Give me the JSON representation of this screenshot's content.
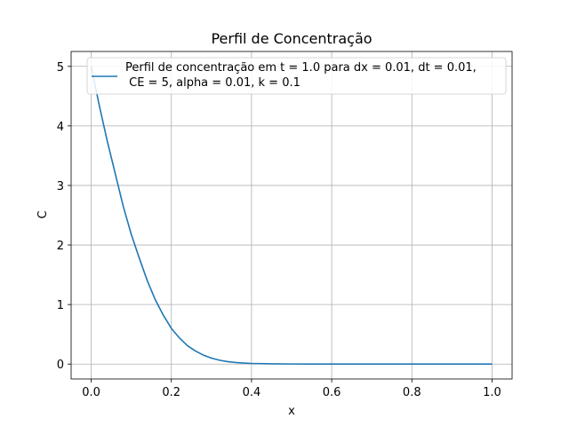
{
  "chart_data": {
    "type": "line",
    "title": "Perfil de Concentração",
    "xlabel": "x",
    "ylabel": "C",
    "xlim": [
      -0.05,
      1.05
    ],
    "ylim": [
      -0.25,
      5.25
    ],
    "xticks": [
      "0.0",
      "0.2",
      "0.4",
      "0.6",
      "0.8",
      "1.0"
    ],
    "yticks": [
      "0",
      "1",
      "2",
      "3",
      "4",
      "5"
    ],
    "grid": true,
    "legend_position": "top-right",
    "series": [
      {
        "name_lines": [
          "Perfil de concentração em t = 1.0 para dx = 0.01, dt = 0.01,",
          " CE = 5, alpha = 0.01, k = 0.1"
        ],
        "color": "#1f77b4",
        "x": [
          0.0,
          0.02,
          0.04,
          0.06,
          0.08,
          0.1,
          0.12,
          0.14,
          0.16,
          0.18,
          0.2,
          0.22,
          0.24,
          0.26,
          0.28,
          0.3,
          0.32,
          0.34,
          0.36,
          0.38,
          0.4,
          0.45,
          0.5,
          0.55,
          0.6,
          0.7,
          0.8,
          0.9,
          1.0
        ],
        "y": [
          5.0,
          4.35,
          3.75,
          3.2,
          2.65,
          2.18,
          1.78,
          1.4,
          1.08,
          0.82,
          0.6,
          0.44,
          0.31,
          0.22,
          0.15,
          0.1,
          0.065,
          0.042,
          0.027,
          0.017,
          0.011,
          0.004,
          0.0015,
          0.0005,
          0.0002,
          0.0,
          0.0,
          0.0,
          0.0
        ]
      }
    ]
  }
}
